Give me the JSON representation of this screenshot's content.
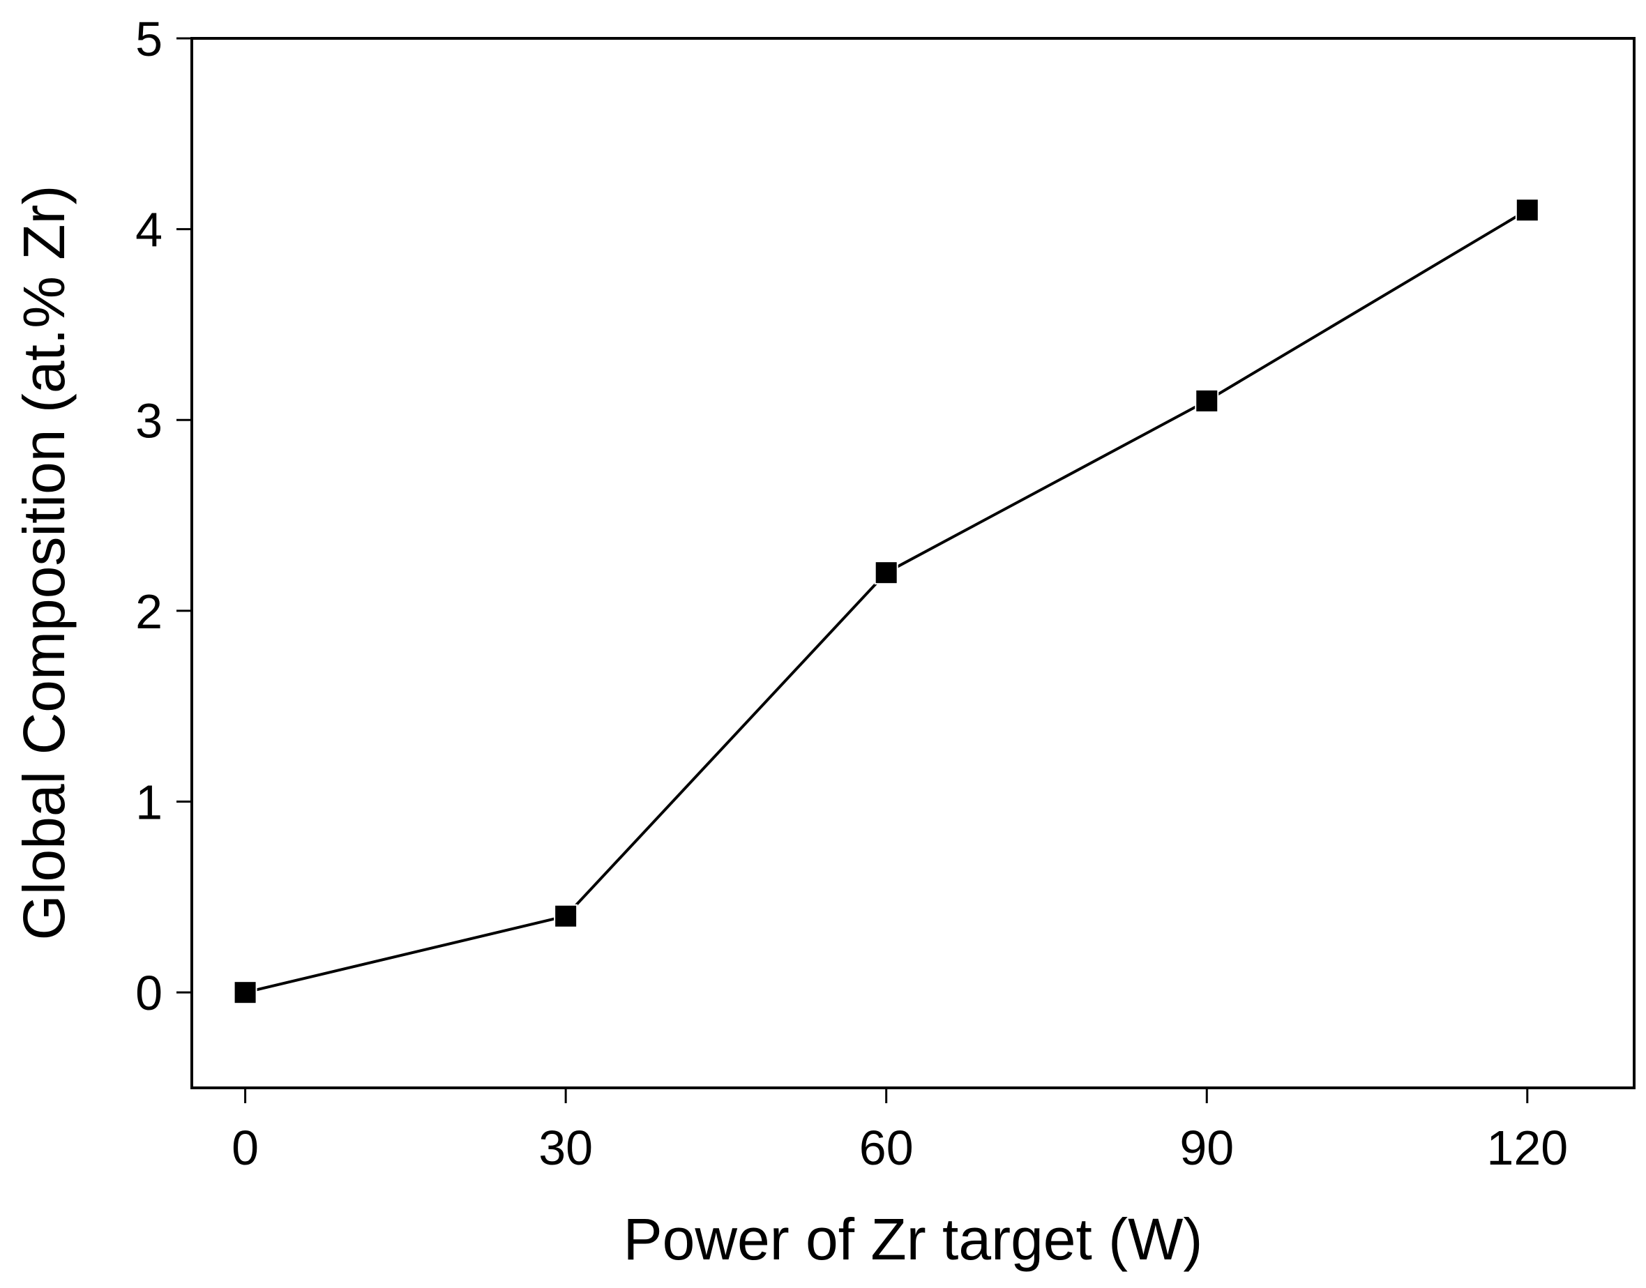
{
  "chart_data": {
    "type": "line",
    "title": "",
    "xlabel": "Power of Zr target (W)",
    "ylabel": "Global Composition (at.% Zr)",
    "xlim": [
      -5,
      130
    ],
    "ylim": [
      -0.5,
      5
    ],
    "xticks": [
      0,
      30,
      60,
      90,
      120
    ],
    "yticks": [
      0,
      1,
      2,
      3,
      4,
      5
    ],
    "grid": false,
    "legend": "none",
    "series": [
      {
        "x": [
          0,
          30,
          60,
          90,
          120
        ],
        "y": [
          0,
          0.4,
          2.2,
          3.1,
          4.1
        ],
        "marker": "square",
        "color": "#000000"
      }
    ]
  }
}
